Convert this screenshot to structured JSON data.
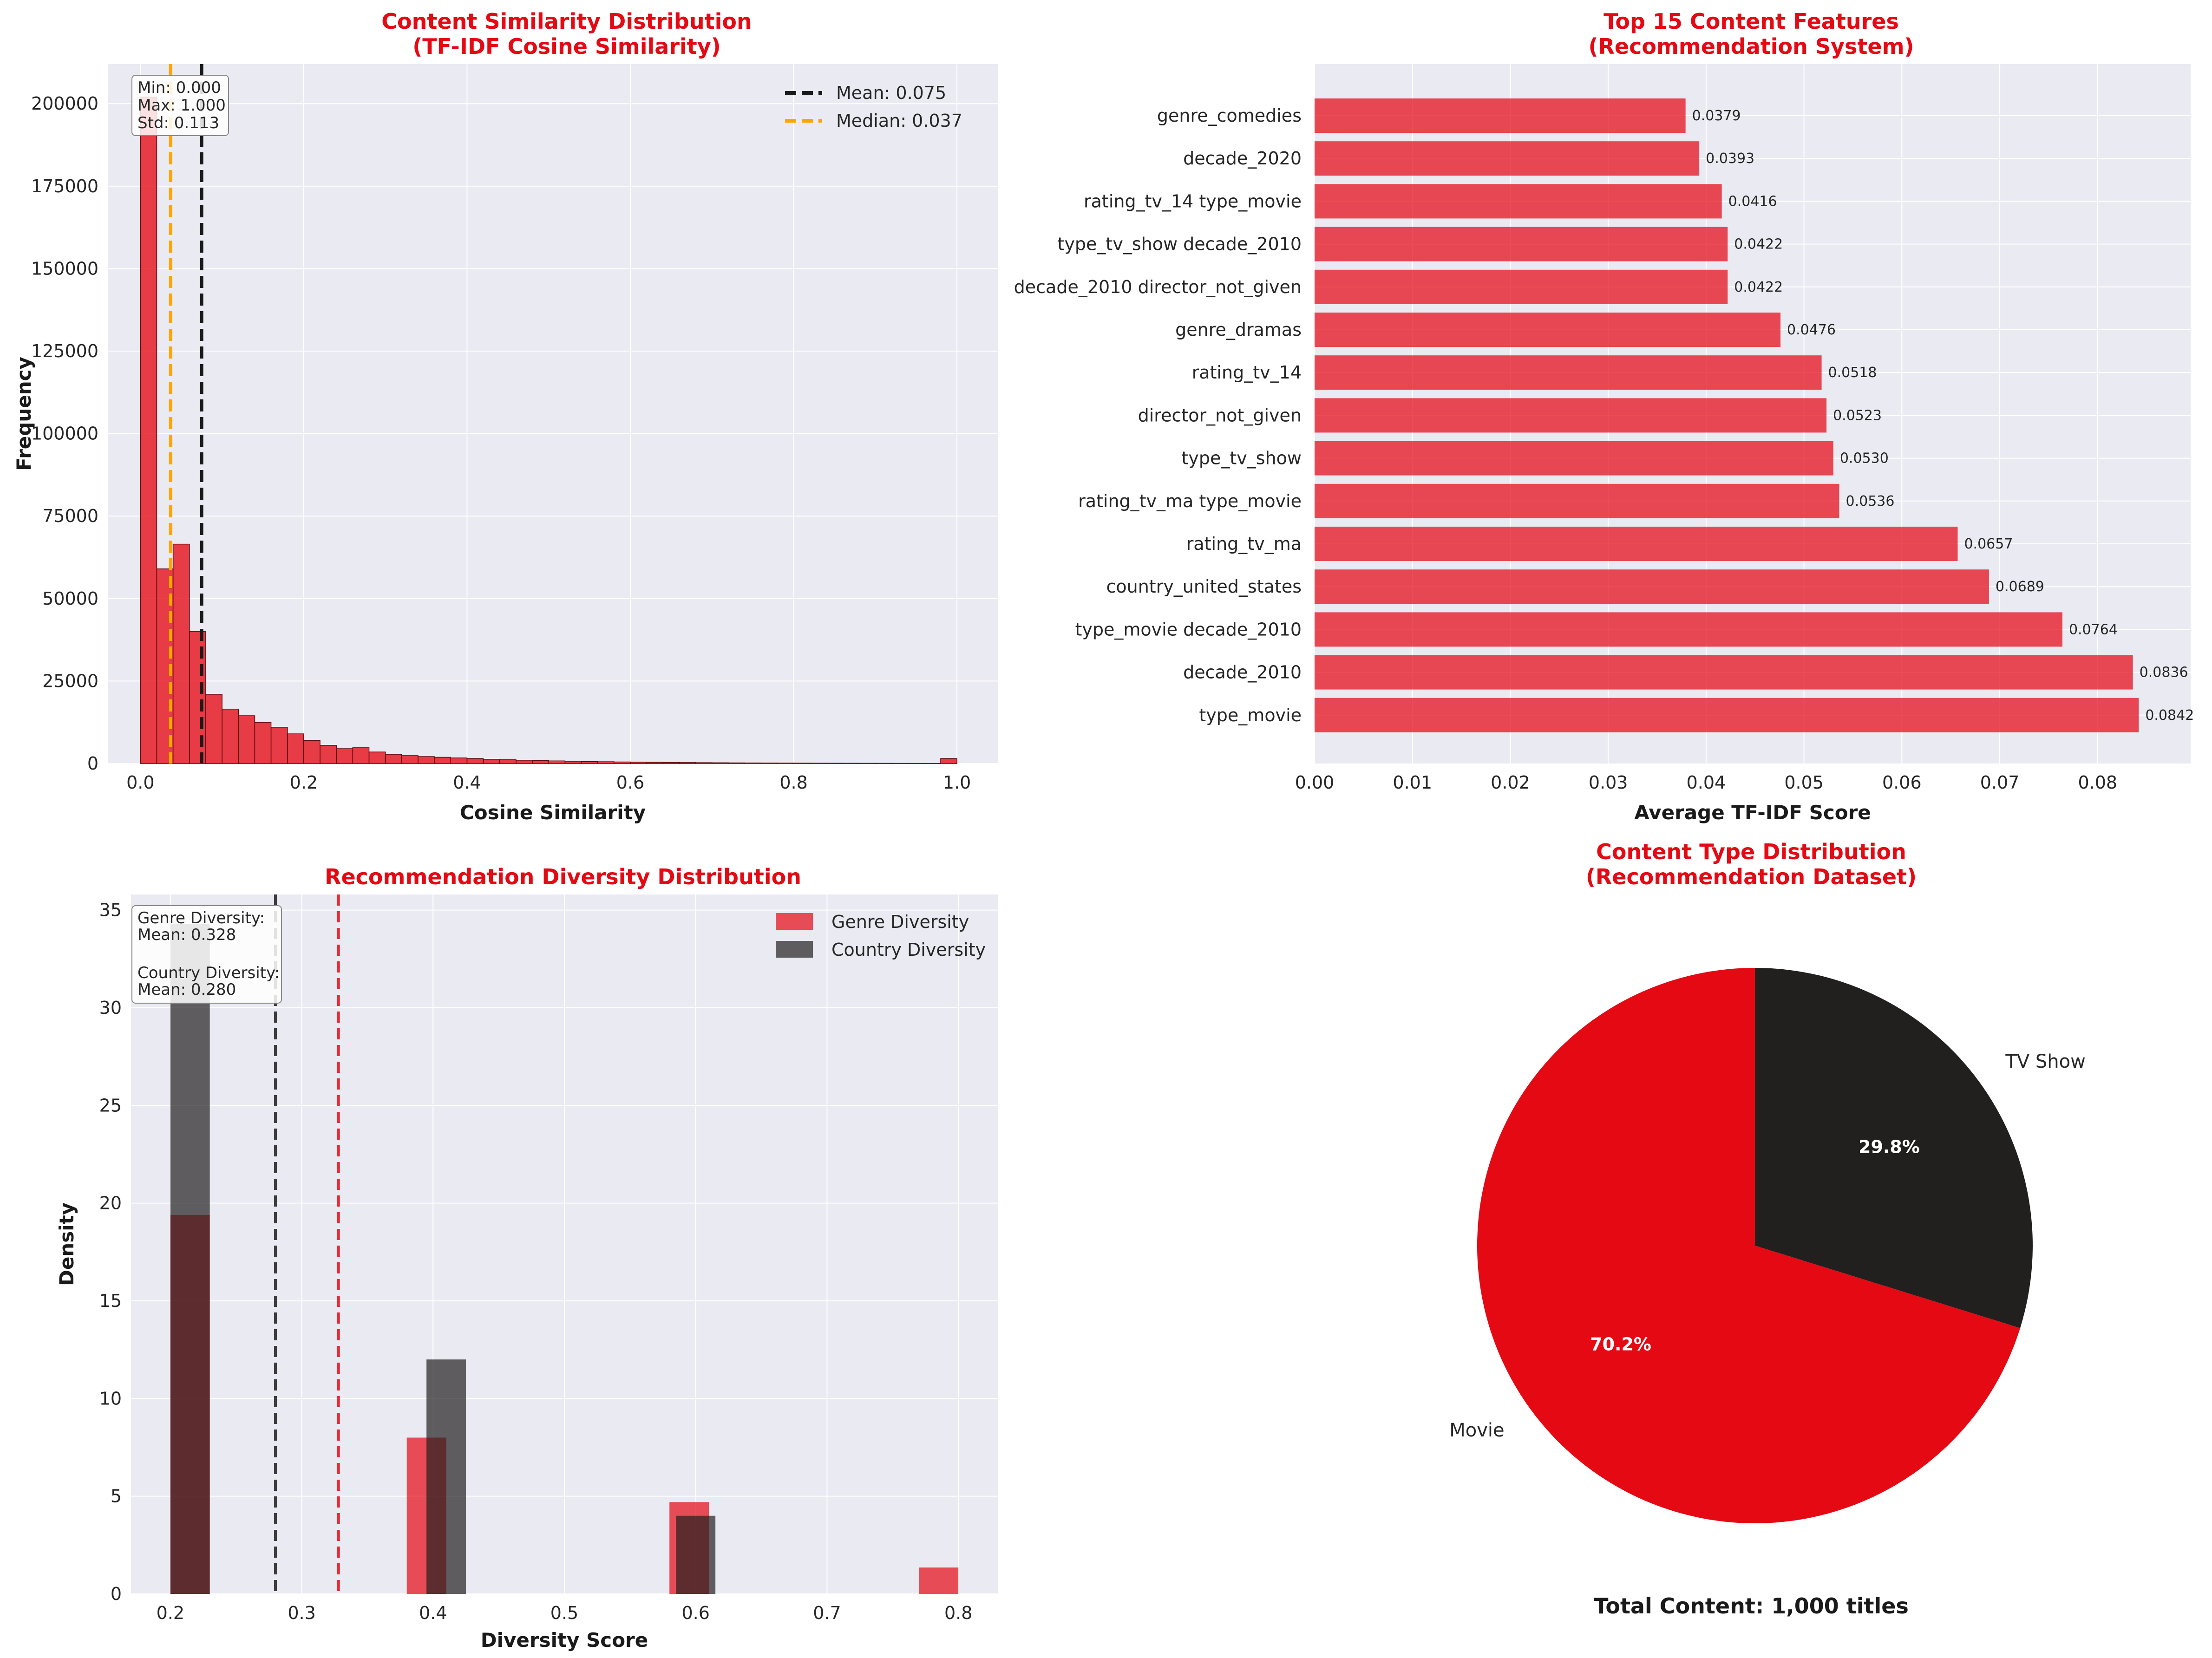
{
  "colors": {
    "red": "#E50914",
    "dark": "#221F1F",
    "grid": "#ffffff",
    "panel": "#EAEAF2",
    "orange": "#FFA500"
  },
  "chart_data": [
    {
      "type": "bar",
      "subtype": "histogram",
      "title_lines": [
        "Content Similarity Distribution",
        "(TF-IDF Cosine Similarity)"
      ],
      "xlabel": "Cosine Similarity",
      "ylabel": "Frequency",
      "xlim": [
        -0.04,
        1.05
      ],
      "ylim": [
        0,
        212000
      ],
      "xticks": [
        0.0,
        0.2,
        0.4,
        0.6,
        0.8,
        1.0
      ],
      "xtick_labels": [
        "0.0",
        "0.2",
        "0.4",
        "0.6",
        "0.8",
        "1.0"
      ],
      "yticks": [
        0,
        25000,
        50000,
        75000,
        100000,
        125000,
        150000,
        175000,
        200000
      ],
      "ytick_labels": [
        "0",
        "25000",
        "50000",
        "75000",
        "100000",
        "125000",
        "150000",
        "175000",
        "200000"
      ],
      "bin_width": 0.02,
      "bin_starts": [
        0.0,
        0.02,
        0.04,
        0.06,
        0.08,
        0.1,
        0.12,
        0.14,
        0.16,
        0.18,
        0.2,
        0.22,
        0.24,
        0.26,
        0.28,
        0.3,
        0.32,
        0.34,
        0.36,
        0.38,
        0.4,
        0.42,
        0.44,
        0.46,
        0.48,
        0.5,
        0.52,
        0.54,
        0.56,
        0.58,
        0.6,
        0.62,
        0.64,
        0.66,
        0.68,
        0.7,
        0.72,
        0.74,
        0.76,
        0.78,
        0.8,
        0.82,
        0.84,
        0.86,
        0.88,
        0.9,
        0.92,
        0.94,
        0.96,
        0.98
      ],
      "values": [
        202000,
        59000,
        66500,
        40000,
        21000,
        16500,
        14500,
        12500,
        11000,
        9000,
        7000,
        5500,
        4500,
        4800,
        3500,
        2800,
        2400,
        2100,
        1900,
        1700,
        1500,
        1300,
        1150,
        1000,
        900,
        800,
        700,
        600,
        550,
        480,
        420,
        380,
        340,
        300,
        260,
        230,
        200,
        180,
        160,
        140,
        120,
        110,
        100,
        90,
        80,
        70,
        60,
        50,
        40,
        1500
      ],
      "lines": [
        {
          "value": 0.075,
          "label": "Mean: 0.075",
          "color": "#1a1a1a"
        },
        {
          "value": 0.037,
          "label": "Median: 0.037",
          "color": "#FFA500"
        }
      ],
      "stats_lines": [
        "Min: 0.000",
        "Max: 1.000",
        "Std: 0.113"
      ],
      "legend_position": "top-right",
      "grid": true
    },
    {
      "type": "bar",
      "orientation": "horizontal",
      "title_lines": [
        "Top 15 Content Features",
        "(Recommendation System)"
      ],
      "xlabel": "Average TF-IDF Score",
      "ylabel": "",
      "xlim": [
        0,
        0.0895
      ],
      "xticks": [
        0.0,
        0.01,
        0.02,
        0.03,
        0.04,
        0.05,
        0.06,
        0.07,
        0.08
      ],
      "xtick_labels": [
        "0.00",
        "0.01",
        "0.02",
        "0.03",
        "0.04",
        "0.05",
        "0.06",
        "0.07",
        "0.08"
      ],
      "categories": [
        "genre_comedies",
        "decade_2020",
        "rating_tv_14 type_movie",
        "type_tv_show decade_2010",
        "decade_2010 director_not_given",
        "genre_dramas",
        "rating_tv_14",
        "director_not_given",
        "type_tv_show",
        "rating_tv_ma type_movie",
        "rating_tv_ma",
        "country_united_states",
        "type_movie decade_2010",
        "decade_2010",
        "type_movie"
      ],
      "values": [
        0.0379,
        0.0393,
        0.0416,
        0.0422,
        0.0422,
        0.0476,
        0.0518,
        0.0523,
        0.053,
        0.0536,
        0.0657,
        0.0689,
        0.0764,
        0.0836,
        0.0842
      ],
      "value_labels": [
        "0.0379",
        "0.0393",
        "0.0416",
        "0.0422",
        "0.0422",
        "0.0476",
        "0.0518",
        "0.0523",
        "0.0530",
        "0.0536",
        "0.0657",
        "0.0689",
        "0.0764",
        "0.0836",
        "0.0842"
      ],
      "grid": true
    },
    {
      "type": "bar",
      "subtype": "histogram",
      "title_lines": [
        "Recommendation Diversity Distribution"
      ],
      "xlabel": "Diversity Score",
      "ylabel": "Density",
      "xlim": [
        0.17,
        0.83
      ],
      "ylim": [
        0,
        35.8
      ],
      "xticks": [
        0.2,
        0.3,
        0.4,
        0.5,
        0.6,
        0.7,
        0.8
      ],
      "xtick_labels": [
        "0.2",
        "0.3",
        "0.4",
        "0.5",
        "0.6",
        "0.7",
        "0.8"
      ],
      "yticks": [
        0,
        5,
        10,
        15,
        20,
        25,
        30,
        35
      ],
      "ytick_labels": [
        "0",
        "5",
        "10",
        "15",
        "20",
        "25",
        "30",
        "35"
      ],
      "bar_width": 0.03,
      "series": [
        {
          "name": "Genre Diversity",
          "color": "#E50914",
          "opacity": 0.7,
          "bins": [
            0.2,
            0.38,
            0.58,
            0.77
          ],
          "values": [
            19.4,
            8.0,
            4.7,
            1.35
          ]
        },
        {
          "name": "Country Diversity",
          "color": "#221F1F",
          "opacity": 0.7,
          "bins": [
            0.2,
            0.395,
            0.585
          ],
          "values": [
            34.3,
            12.0,
            4.0
          ]
        }
      ],
      "lines": [
        {
          "value": 0.328,
          "color": "#E50914"
        },
        {
          "value": 0.28,
          "color": "#221F1F"
        }
      ],
      "stats_lines": [
        "Genre Diversity:",
        "Mean: 0.328",
        "",
        "Country Diversity:",
        "Mean: 0.280"
      ],
      "legend_position": "top-right",
      "grid": true
    },
    {
      "type": "pie",
      "title_lines": [
        "Content Type Distribution",
        "(Recommendation Dataset)"
      ],
      "labels": [
        "Movie",
        "TV Show"
      ],
      "values": [
        70.2,
        29.8
      ],
      "pct_labels": [
        "70.2%",
        "29.8%"
      ],
      "colors": [
        "#E50914",
        "#221F1F"
      ],
      "footer": "Total Content: 1,000 titles"
    }
  ]
}
